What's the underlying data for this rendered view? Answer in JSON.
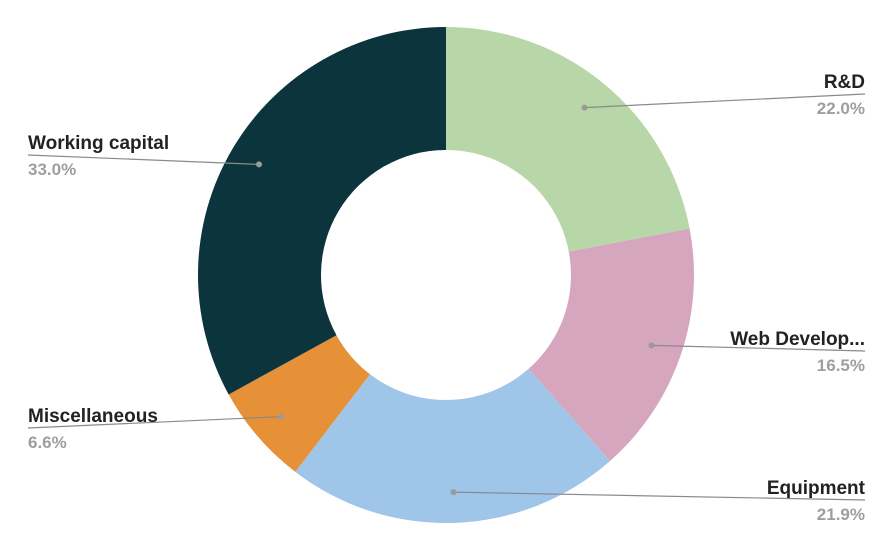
{
  "chart_data": {
    "type": "pie",
    "style": "donut",
    "title": "",
    "start_angle_deg": 0,
    "direction": "clockwise",
    "slices": [
      {
        "label": "R&D",
        "value": 22.0,
        "value_label": "22.0%",
        "color": "#b7d7a8"
      },
      {
        "label": "Web Develop...",
        "value": 16.5,
        "value_label": "16.5%",
        "color": "#d5a6bd"
      },
      {
        "label": "Equipment",
        "value": 21.9,
        "value_label": "21.9%",
        "color": "#9fc5e8"
      },
      {
        "label": "Miscellaneous",
        "value": 6.6,
        "value_label": "6.6%",
        "color": "#e69138"
      },
      {
        "label": "Working capital",
        "value": 33.0,
        "value_label": "33.0%",
        "color": "#0c343d"
      }
    ]
  }
}
